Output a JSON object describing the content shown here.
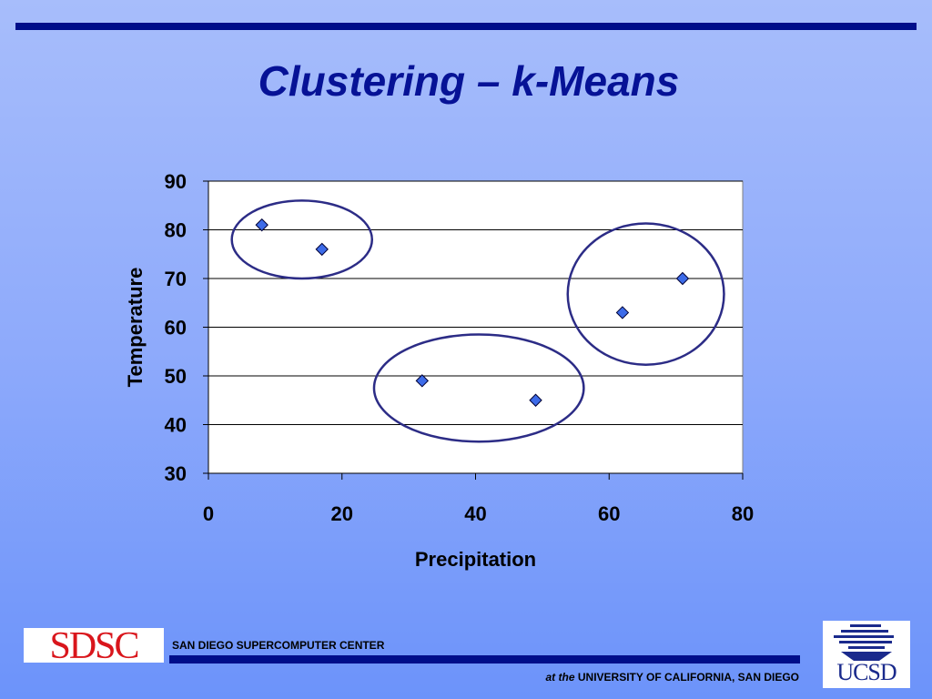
{
  "slide": {
    "title": "Clustering – k-Means"
  },
  "footer": {
    "sdsc_logo_text": "SDSC",
    "center_name": "SAN DIEGO SUPERCOMPUTER CENTER",
    "at_the": "at the",
    "university": "UNIVERSITY OF CALIFORNIA, SAN DIEGO",
    "ucsd_logo_text": "UCSD"
  },
  "colors": {
    "rule": "#000e8a",
    "title": "#061296",
    "marker": "#3d6be8",
    "cluster_ring": "#2c2c86"
  },
  "chart_data": {
    "type": "scatter",
    "xlabel": "Precipitation",
    "ylabel": "Temperature",
    "xlim": [
      0,
      80
    ],
    "ylim": [
      30,
      90
    ],
    "xticks": [
      0,
      20,
      40,
      60,
      80
    ],
    "yticks": [
      30,
      40,
      50,
      60,
      70,
      80,
      90
    ],
    "grid": "horizontal",
    "marker": "diamond",
    "points": [
      {
        "x": 8,
        "y": 81
      },
      {
        "x": 17,
        "y": 76
      },
      {
        "x": 32,
        "y": 49
      },
      {
        "x": 49,
        "y": 45
      },
      {
        "x": 62,
        "y": 63
      },
      {
        "x": 71,
        "y": 70
      }
    ],
    "clusters": [
      {
        "cx": 14,
        "cy": 78,
        "rx": 10.5,
        "ry": 8
      },
      {
        "cx": 40.5,
        "cy": 47.5,
        "rx": 15.7,
        "ry": 11
      },
      {
        "cx": 65.5,
        "cy": 66.8,
        "rx": 11.7,
        "ry": 14.5
      }
    ]
  }
}
